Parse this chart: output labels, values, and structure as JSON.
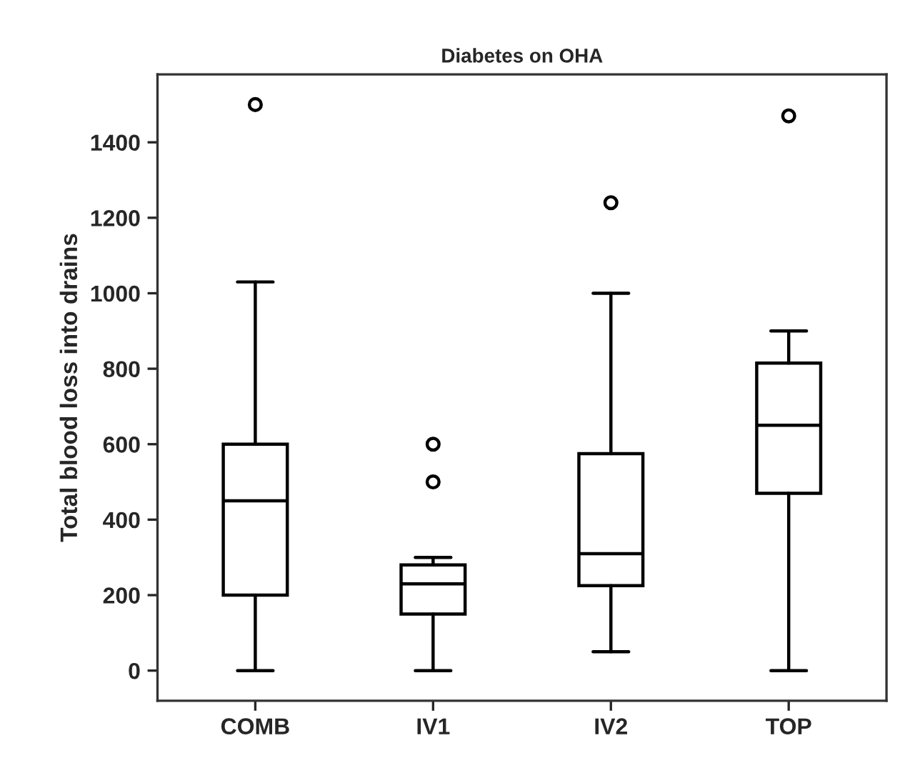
{
  "chart_data": {
    "type": "box",
    "title": "Diabetes on OHA",
    "ylabel": "Total blood loss into drains",
    "categories": [
      "COMB",
      "IV1",
      "IV2",
      "TOP"
    ],
    "boxes": [
      {
        "low": 0,
        "q1": 200,
        "median": 450,
        "q3": 600,
        "high": 1030,
        "outliers": [
          1500
        ]
      },
      {
        "low": 0,
        "q1": 150,
        "median": 230,
        "q3": 280,
        "high": 300,
        "outliers": [
          500,
          600
        ]
      },
      {
        "low": 50,
        "q1": 225,
        "median": 310,
        "q3": 575,
        "high": 1000,
        "outliers": [
          1240
        ]
      },
      {
        "low": 0,
        "q1": 470,
        "median": 650,
        "q3": 815,
        "high": 900,
        "outliers": [
          1470
        ]
      }
    ],
    "color": "#000000",
    "ylim": [
      -80,
      1580
    ],
    "yticks": [
      0,
      200,
      400,
      600,
      800,
      1000,
      1200,
      1400
    ],
    "grid": false
  }
}
